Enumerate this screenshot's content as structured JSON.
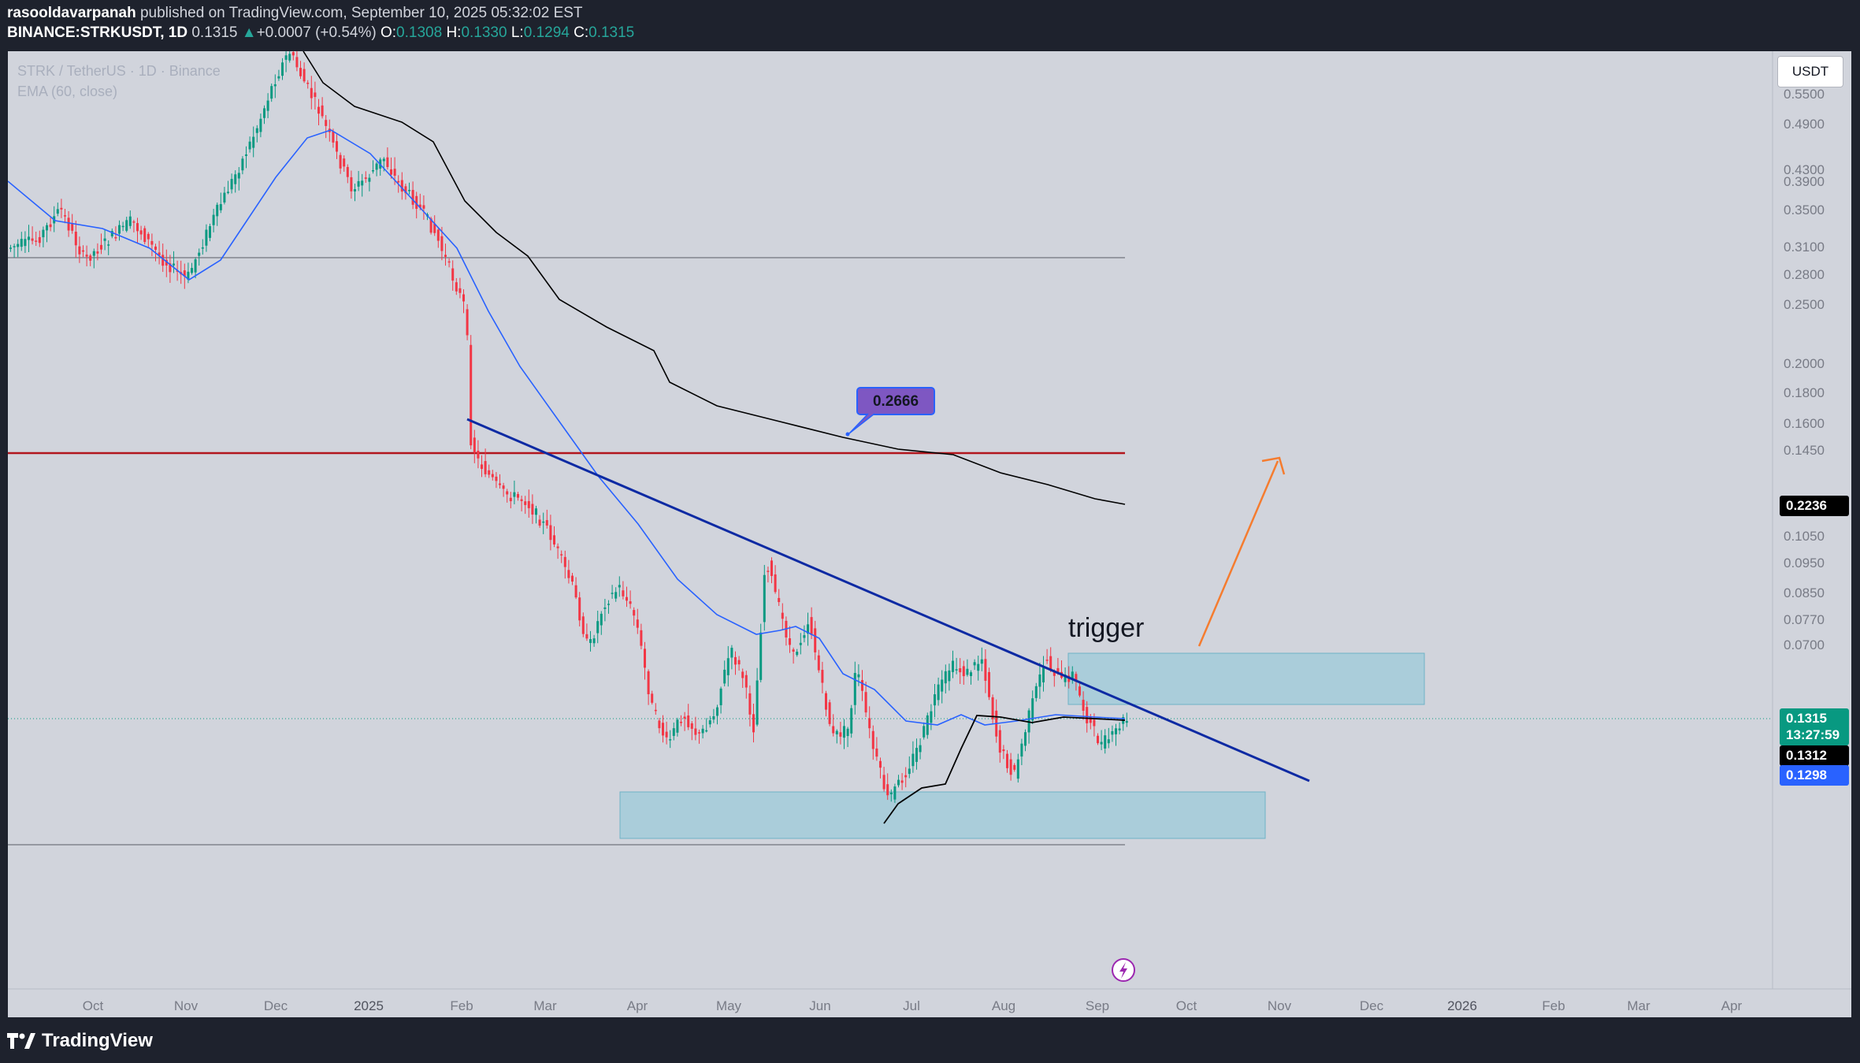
{
  "header": {
    "author": "rasooldavarpanah",
    "published_text": "published on TradingView.com, September 10, 2025 05:32:02 EST",
    "symbol_line": "BINANCE:STRKUSDT, 1D",
    "last": "0.1315",
    "change_arrow": "▲",
    "change": "+0.0007 (+0.54%)",
    "o_label": "O:",
    "o_value": "0.1308",
    "h_label": "H:",
    "h_value": "0.1330",
    "l_label": "L:",
    "l_value": "0.1294",
    "c_label": "C:",
    "c_value": "0.1315"
  },
  "legend": {
    "symbol": "STRK / TetherUS · 1D · Binance",
    "indicator": "EMA (60, close)"
  },
  "currency_button": "USDT",
  "price_axis": [
    "0.5500",
    "0.4900",
    "0.4300",
    "0.3900",
    "0.3500",
    "0.3100",
    "0.2800",
    "0.2500",
    "0.2000",
    "0.1800",
    "0.1600",
    "0.1450",
    "0.1050",
    "0.0950",
    "0.0850",
    "0.0770",
    "0.0700"
  ],
  "time_axis": [
    "Oct",
    "Nov",
    "Dec",
    "2025",
    "Feb",
    "Mar",
    "Apr",
    "May",
    "Jun",
    "Jul",
    "Aug",
    "Sep",
    "Oct",
    "Nov",
    "Dec",
    "2026",
    "Feb",
    "Mar",
    "Apr"
  ],
  "badges": {
    "ema200": "0.2236",
    "last_price": "0.1315",
    "countdown": "13:27:59",
    "ema_black": "0.1312",
    "ema_blue": "0.1298"
  },
  "annotations": {
    "callout": "0.2666",
    "trigger": "trigger"
  },
  "colors": {
    "background": "#d1d4dc",
    "up": "#089981",
    "down": "#f23645",
    "ema_blue": "#2962ff",
    "ema_black": "#000000",
    "trendline": "#0d2aa3",
    "resistance": "#b2161d",
    "zone_fill": "#9ccbd9",
    "arrow": "#f57c2f"
  },
  "branding": "TradingView"
}
